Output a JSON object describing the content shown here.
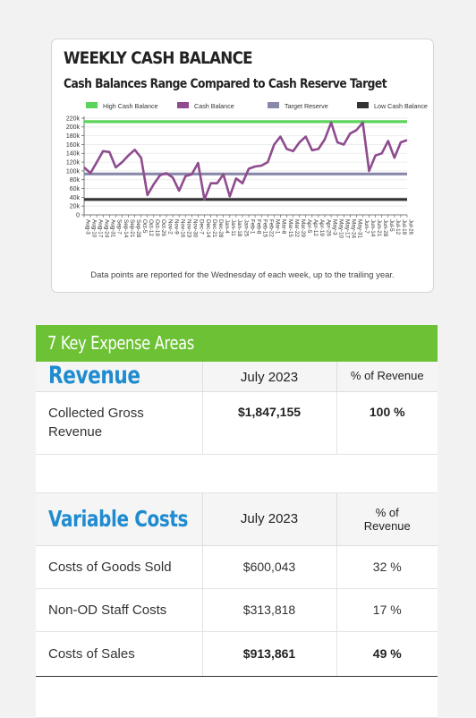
{
  "chart_card": {
    "title": "WEEKLY CASH BALANCE",
    "subtitle": "Cash Balances Range Compared to Cash Reserve Target",
    "note": "Data points are reported for the Wednesday of each week, up to the trailing year."
  },
  "chart_data": {
    "type": "line",
    "title": "WEEKLY CASH BALANCE",
    "subtitle": "Cash Balances Range Compared to Cash Reserve Target",
    "ylim": [
      0,
      220000
    ],
    "ytick_labels": [
      "0",
      "20k",
      "40k",
      "60k",
      "80k",
      "100k",
      "120k",
      "140k",
      "160k",
      "180k",
      "200k",
      "220k"
    ],
    "legend_position": "top",
    "grid": true,
    "x": [
      "Aug-3",
      "Aug-10",
      "Aug-17",
      "Aug-24",
      "Aug-31",
      "Sep-7",
      "Sep-14",
      "Sep-21",
      "Sep-28",
      "Oct-5",
      "Oct-12",
      "Oct-19",
      "Oct-26",
      "Nov-2",
      "Nov-9",
      "Nov-16",
      "Nov-23",
      "Nov-30",
      "Dec-7",
      "Dec-14",
      "Dec-21",
      "Dec-28",
      "Jan-4",
      "Jan-11",
      "Jan-18",
      "Jan-25",
      "Feb-1",
      "Feb-8",
      "Feb-15",
      "Feb-22",
      "Mar-1",
      "Mar-8",
      "Mar-15",
      "Mar-22",
      "Mar-29",
      "Apr-5",
      "Apr-12",
      "Apr-19",
      "Apr-26",
      "May-3",
      "May-10",
      "May-17",
      "May-24",
      "May-31",
      "Jun-7",
      "Jun-14",
      "Jun-21",
      "Jun-28",
      "Jul-5",
      "Jul-12",
      "Jul-19",
      "Jul-26"
    ],
    "x_tick_labels": [
      "Aug-3",
      "Aug-10",
      "Aug-17",
      "Aug-24",
      "Aug-31",
      "Sep-7",
      "Sep-14",
      "Sep-21",
      "Sep-28",
      "Oct-5",
      "Oct-12",
      "Oct-19",
      "Oct-26",
      "Nov-2",
      "Nov-9",
      "Nov-16",
      "Nov-23",
      "Nov-30",
      "Dec-7",
      "Dec-14",
      "Dec-21",
      "Dec-28",
      "Jan-4",
      "Jan-11",
      "Jan-18",
      "Jan-25",
      "Feb-1",
      "Feb-8",
      "Feb-15",
      "Feb-22",
      "Mar-1",
      "Mar-8",
      "Mar-15",
      "Mar-22",
      "Mar-29",
      "Apr-5",
      "Apr-12",
      "Apr-19",
      "Apr-26",
      "May-3",
      "May-10",
      "May-17",
      "May-24",
      "May-31",
      "Jun-7",
      "Jun-14",
      "Jun-21",
      "Jun-28",
      "Jul-5",
      "Jul-12",
      "Jul-19",
      "Jul-26"
    ],
    "series": [
      {
        "name": "High Cash Balance",
        "color": "#5bd45b",
        "values": [
          212000,
          212000,
          212000,
          212000,
          212000,
          212000,
          212000,
          212000,
          212000,
          212000,
          212000,
          212000,
          212000,
          212000,
          212000,
          212000,
          212000,
          212000,
          212000,
          212000,
          212000,
          212000,
          212000,
          212000,
          212000,
          212000,
          212000,
          212000,
          212000,
          212000,
          212000,
          212000,
          212000,
          212000,
          212000,
          212000,
          212000,
          212000,
          212000,
          212000,
          212000,
          212000,
          212000,
          212000,
          212000,
          212000,
          212000,
          212000,
          212000,
          212000,
          212000,
          212000
        ]
      },
      {
        "name": "Cash Balance",
        "color": "#8e4c8f",
        "values": [
          108000,
          95000,
          120000,
          145000,
          143000,
          108000,
          120000,
          135000,
          148000,
          130000,
          45000,
          70000,
          90000,
          95000,
          85000,
          55000,
          88000,
          92000,
          118000,
          35000,
          72000,
          72000,
          92000,
          42000,
          83000,
          72000,
          105000,
          110000,
          112000,
          120000,
          160000,
          178000,
          150000,
          145000,
          165000,
          178000,
          147000,
          150000,
          172000,
          210000,
          165000,
          160000,
          185000,
          193000,
          210000,
          100000,
          135000,
          140000,
          168000,
          130000,
          165000,
          170000
        ]
      },
      {
        "name": "Target Reserve",
        "color": "#8888aa",
        "values": [
          93000,
          93000,
          93000,
          93000,
          93000,
          93000,
          93000,
          93000,
          93000,
          93000,
          93000,
          93000,
          93000,
          93000,
          93000,
          93000,
          93000,
          93000,
          93000,
          93000,
          93000,
          93000,
          93000,
          93000,
          93000,
          93000,
          93000,
          93000,
          93000,
          93000,
          93000,
          93000,
          93000,
          93000,
          93000,
          93000,
          93000,
          93000,
          93000,
          93000,
          93000,
          93000,
          93000,
          93000,
          93000,
          93000,
          93000,
          93000,
          93000,
          93000,
          93000,
          93000
        ]
      },
      {
        "name": "Low Cash Balance",
        "color": "#333333",
        "values": [
          35000,
          35000,
          35000,
          35000,
          35000,
          35000,
          35000,
          35000,
          35000,
          35000,
          35000,
          35000,
          35000,
          35000,
          35000,
          35000,
          35000,
          35000,
          35000,
          35000,
          35000,
          35000,
          35000,
          35000,
          35000,
          35000,
          35000,
          35000,
          35000,
          35000,
          35000,
          35000,
          35000,
          35000,
          35000,
          35000,
          35000,
          35000,
          35000,
          35000,
          35000,
          35000,
          35000,
          35000,
          35000,
          35000,
          35000,
          35000,
          35000,
          35000,
          35000,
          35000
        ]
      }
    ]
  },
  "expense_section": {
    "header": "7 Key Expense Areas",
    "revenue": {
      "title": "Revenue",
      "col_period": "July 2023",
      "col_pct": "% of Revenue",
      "rows": [
        {
          "label": "Collected Gross Revenue",
          "value": "$1,847,155",
          "pct": "100 %"
        }
      ]
    },
    "variable_costs": {
      "title": "Variable Costs",
      "col_period": "July 2023",
      "col_pct": "% of Revenue",
      "rows": [
        {
          "label": "Costs of Goods Sold",
          "value": "$600,043",
          "pct": "32 %"
        },
        {
          "label": "Non-OD Staff Costs",
          "value": "$313,818",
          "pct": "17 %"
        }
      ],
      "total": {
        "label": "Costs of Sales",
        "value": "$913,861",
        "pct": "49 %"
      }
    }
  }
}
